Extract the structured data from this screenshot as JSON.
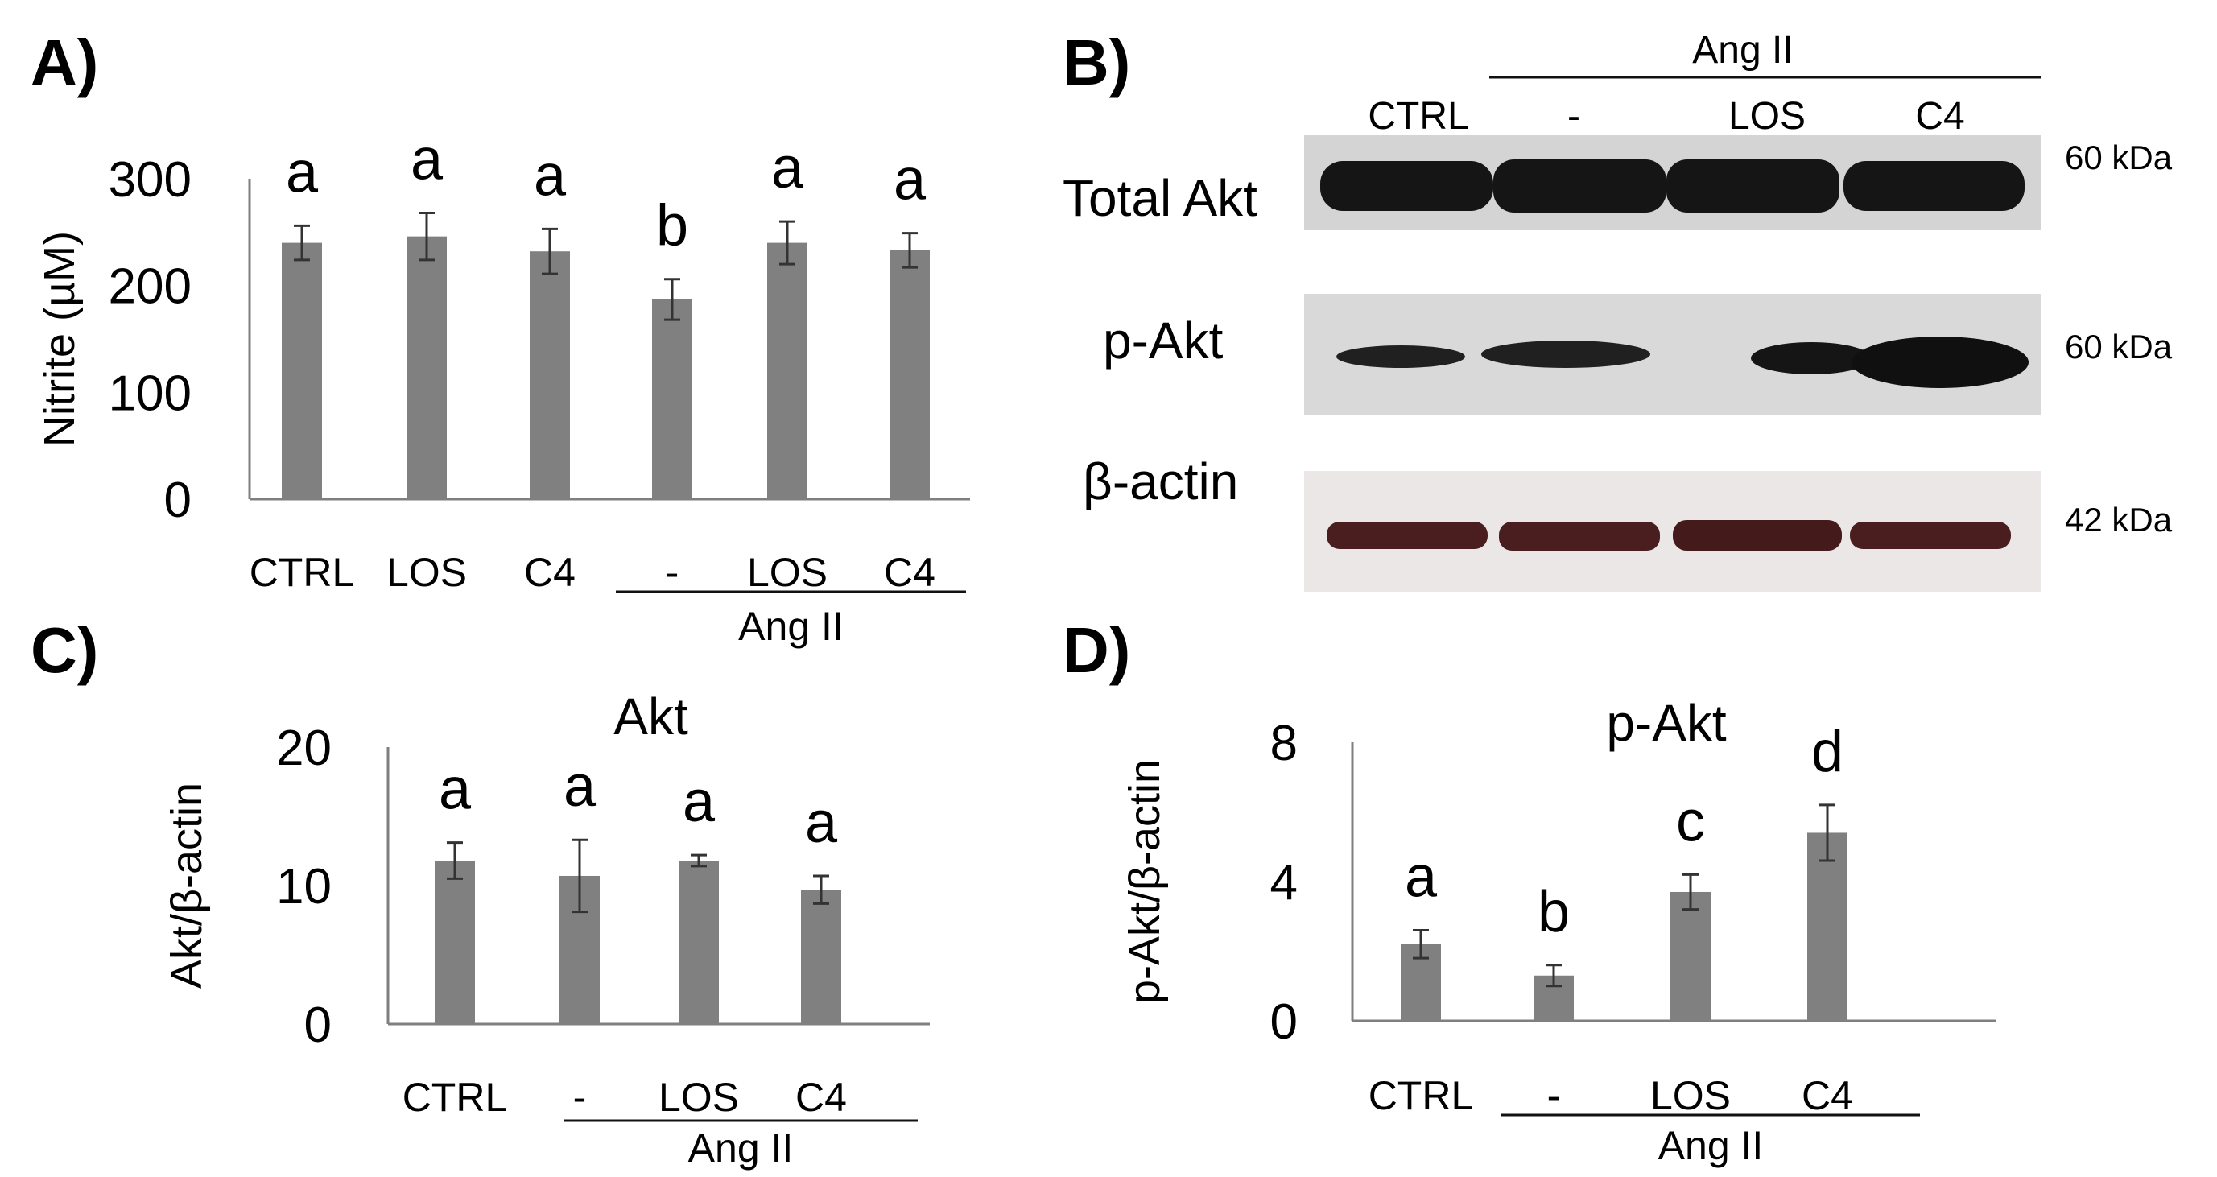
{
  "panels": {
    "A": "A)",
    "B": "B)",
    "C": "C)",
    "D": "D)"
  },
  "colors": {
    "bar": "#808080",
    "axis": "#7f7f7f",
    "text": "#111111"
  },
  "chart_data": [
    {
      "panel": "A",
      "type": "bar",
      "title": "",
      "ylabel": "Nitrite (µM)",
      "ylim": [
        0,
        300
      ],
      "yticks": [
        "0",
        "100",
        "200",
        "300"
      ],
      "categories": [
        "CTRL",
        "LOS",
        "C4",
        "-",
        "LOS",
        "C4"
      ],
      "group_label": "Ang II",
      "values": [
        240,
        246,
        232,
        187,
        240,
        233
      ],
      "errors": [
        16,
        22,
        21,
        19,
        20,
        16
      ],
      "letters": [
        "a",
        "a",
        "a",
        "b",
        "a",
        "a"
      ]
    },
    {
      "panel": "C",
      "type": "bar",
      "title": "Akt",
      "ylabel": "Akt/β-actin",
      "ylim": [
        0,
        20
      ],
      "yticks": [
        "0",
        "10",
        "20"
      ],
      "categories": [
        "CTRL",
        "-",
        "LOS",
        "C4"
      ],
      "group_label": "Ang II",
      "values": [
        11.8,
        10.7,
        11.8,
        9.7
      ],
      "errors": [
        1.3,
        2.6,
        0.4,
        1.0
      ],
      "letters": [
        "a",
        "a",
        "a",
        "a"
      ]
    },
    {
      "panel": "D",
      "type": "bar",
      "title": "p-Akt",
      "ylabel": "p-Akt/β-actin",
      "ylim": [
        0,
        8
      ],
      "yticks": [
        "0",
        "4",
        "8"
      ],
      "categories": [
        "CTRL",
        "-",
        "LOS",
        "C4"
      ],
      "group_label": "Ang II",
      "values": [
        2.2,
        1.3,
        3.7,
        5.4
      ],
      "errors": [
        0.4,
        0.3,
        0.5,
        0.8
      ],
      "letters": [
        "a",
        "b",
        "c",
        "d"
      ]
    }
  ],
  "blot": {
    "group_label": "Ang II",
    "lanes": [
      "CTRL",
      "-",
      "LOS",
      "C4"
    ],
    "rows": [
      {
        "label": "Total Akt",
        "kda": "60 kDa"
      },
      {
        "label": "p-Akt",
        "kda": "60 kDa"
      },
      {
        "label": "β-actin",
        "kda": "42 kDa"
      }
    ]
  }
}
